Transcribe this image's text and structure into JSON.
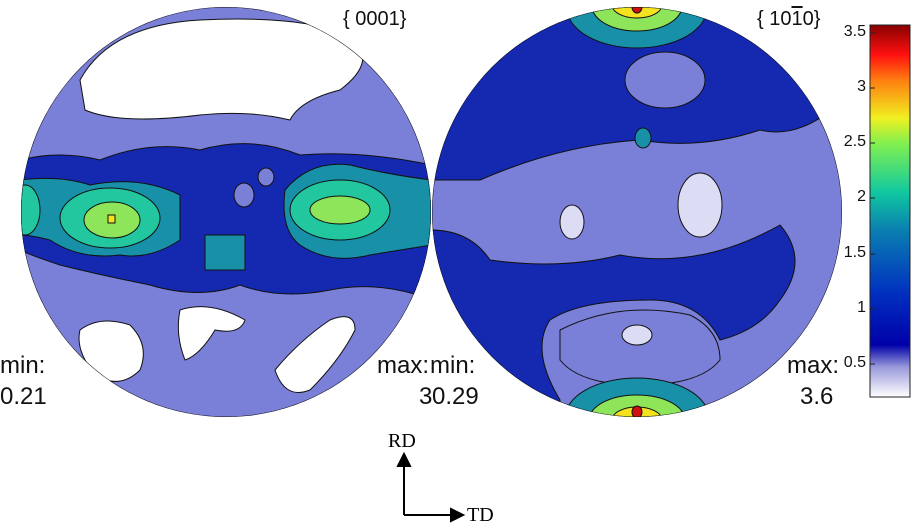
{
  "chart_data": {
    "type": "heatmap",
    "subtype": "pole-figure-contour",
    "panels": [
      {
        "title": "{ 0001}",
        "min_label": "min:",
        "min_value": "0.21",
        "max_label": "max:",
        "max_value": "3",
        "description_colors": {
          "background_level": 0.8,
          "peaks": "left and right equator, approx 2.5-3"
        }
      },
      {
        "title_prefix": "{ 10",
        "title_bar": "1",
        "title_suffix": "0}",
        "min_label": "min:",
        "min_value": "0.29",
        "max_label": "max:",
        "max_value": "3.6",
        "description_colors": {
          "background_level": 0.8,
          "peaks": "top and bottom poles, approx 3.6"
        }
      }
    ],
    "colorbar": {
      "ticks": [
        "3.5",
        "3",
        "2.5",
        "2",
        "1.5",
        "1",
        "0.5"
      ],
      "tick_values": [
        3.5,
        3,
        2.5,
        2,
        1.5,
        1,
        0.5
      ],
      "range": [
        0.2,
        3.6
      ],
      "colormap": "jet"
    },
    "axes_labels": {
      "vertical": "RD",
      "horizontal": "TD"
    }
  },
  "colors": {
    "white": "#ffffff",
    "level_lavender": "#7a7fd8",
    "level_blue": "#1529b0",
    "level_teal": "#1790a8",
    "level_cyan": "#22c7a0",
    "level_green": "#8ee55a",
    "level_yellow": "#f5e21e",
    "level_red": "#d01010",
    "pale": "#dcdcf4"
  }
}
